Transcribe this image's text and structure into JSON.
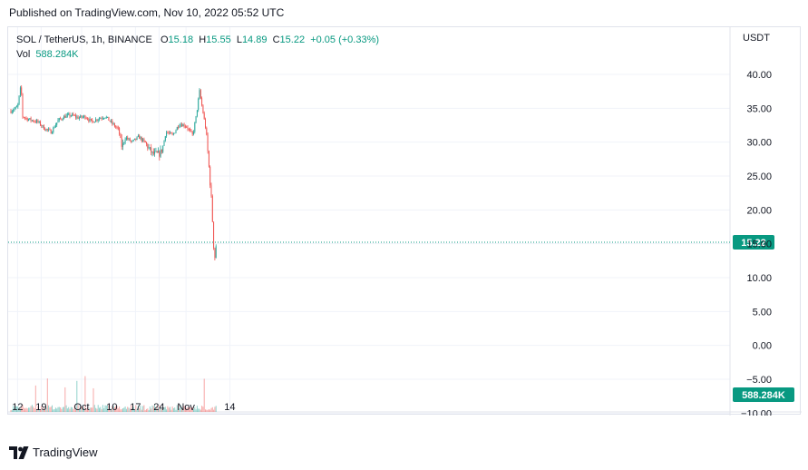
{
  "header": {
    "published": "Published on TradingView.com, Nov 10, 2022 05:52 UTC"
  },
  "legend": {
    "symbol": "SOL / TetherUS, 1h, BINANCE",
    "o_label": "O",
    "o_value": "15.18",
    "h_label": "H",
    "h_value": "15.55",
    "l_label": "L",
    "l_value": "14.89",
    "c_label": "C",
    "c_value": "15.22",
    "change": "+0.05 (+0.33%)",
    "vol_label": "Vol",
    "vol_value": "588.284K"
  },
  "footer": {
    "brand": "TradingView"
  },
  "colors": {
    "up": "#26a69a",
    "down": "#ef5350",
    "accent": "#089981",
    "grid": "#f0f3fa",
    "axis_text": "#131722"
  },
  "chart_data": {
    "type": "candlestick",
    "currency_label": "USDT",
    "price_axis": {
      "range": [
        -10,
        44
      ],
      "ticks": [
        "40.00",
        "35.00",
        "30.00",
        "25.00",
        "20.00",
        "15.00",
        "10.00",
        "5.00",
        "0.00",
        "−5.00",
        "−10.00"
      ],
      "tick_values": [
        40,
        35,
        30,
        25,
        20,
        15,
        10,
        5,
        0,
        -5,
        -10
      ]
    },
    "time_axis": {
      "range_days": [
        "2022-09-10",
        "2022-11-16"
      ],
      "ticks": [
        {
          "label": "12",
          "date": "2022-09-12"
        },
        {
          "label": "19",
          "date": "2022-09-19"
        },
        {
          "label": "Oct",
          "date": "2022-10-01"
        },
        {
          "label": "10",
          "date": "2022-10-10"
        },
        {
          "label": "17",
          "date": "2022-10-17"
        },
        {
          "label": "24",
          "date": "2022-10-24"
        },
        {
          "label": "Nov",
          "date": "2022-11-01"
        },
        {
          "label": "14",
          "date": "2022-11-14"
        }
      ]
    },
    "last_price": {
      "value": 15.22,
      "label": "15.22"
    },
    "last_volume": {
      "label": "588.284K"
    },
    "price_path": [
      {
        "date": "2022-09-10",
        "price": 34.6
      },
      {
        "date": "2022-09-12",
        "price": 35.2
      },
      {
        "date": "2022-09-13",
        "price": 38.5
      },
      {
        "date": "2022-09-13T12",
        "price": 33.8
      },
      {
        "date": "2022-09-15",
        "price": 33.4
      },
      {
        "date": "2022-09-18",
        "price": 33.0
      },
      {
        "date": "2022-09-20",
        "price": 32.0
      },
      {
        "date": "2022-09-22",
        "price": 31.5
      },
      {
        "date": "2022-09-24",
        "price": 33.2
      },
      {
        "date": "2022-09-26",
        "price": 33.8
      },
      {
        "date": "2022-09-28",
        "price": 34.0
      },
      {
        "date": "2022-09-30",
        "price": 33.6
      },
      {
        "date": "2022-10-02",
        "price": 33.8
      },
      {
        "date": "2022-10-04",
        "price": 33.0
      },
      {
        "date": "2022-10-06",
        "price": 33.5
      },
      {
        "date": "2022-10-08",
        "price": 33.8
      },
      {
        "date": "2022-10-10",
        "price": 32.8
      },
      {
        "date": "2022-10-12",
        "price": 31.8
      },
      {
        "date": "2022-10-13",
        "price": 29.2
      },
      {
        "date": "2022-10-14",
        "price": 30.7
      },
      {
        "date": "2022-10-16",
        "price": 30.0
      },
      {
        "date": "2022-10-18",
        "price": 30.8
      },
      {
        "date": "2022-10-20",
        "price": 29.8
      },
      {
        "date": "2022-10-22",
        "price": 28.3
      },
      {
        "date": "2022-10-24",
        "price": 28.2
      },
      {
        "date": "2022-10-25",
        "price": 29.0
      },
      {
        "date": "2022-10-26",
        "price": 31.5
      },
      {
        "date": "2022-10-28",
        "price": 31.0
      },
      {
        "date": "2022-10-30",
        "price": 32.7
      },
      {
        "date": "2022-11-01",
        "price": 32.4
      },
      {
        "date": "2022-11-03",
        "price": 31.0
      },
      {
        "date": "2022-11-04",
        "price": 33.8
      },
      {
        "date": "2022-11-05",
        "price": 37.5
      },
      {
        "date": "2022-11-06",
        "price": 34.5
      },
      {
        "date": "2022-11-07",
        "price": 31.5
      },
      {
        "date": "2022-11-08",
        "price": 25.0
      },
      {
        "date": "2022-11-08T18",
        "price": 20.0
      },
      {
        "date": "2022-11-09",
        "price": 16.0
      },
      {
        "date": "2022-11-09T12",
        "price": 12.8
      },
      {
        "date": "2022-11-10",
        "price": 15.22
      }
    ]
  }
}
